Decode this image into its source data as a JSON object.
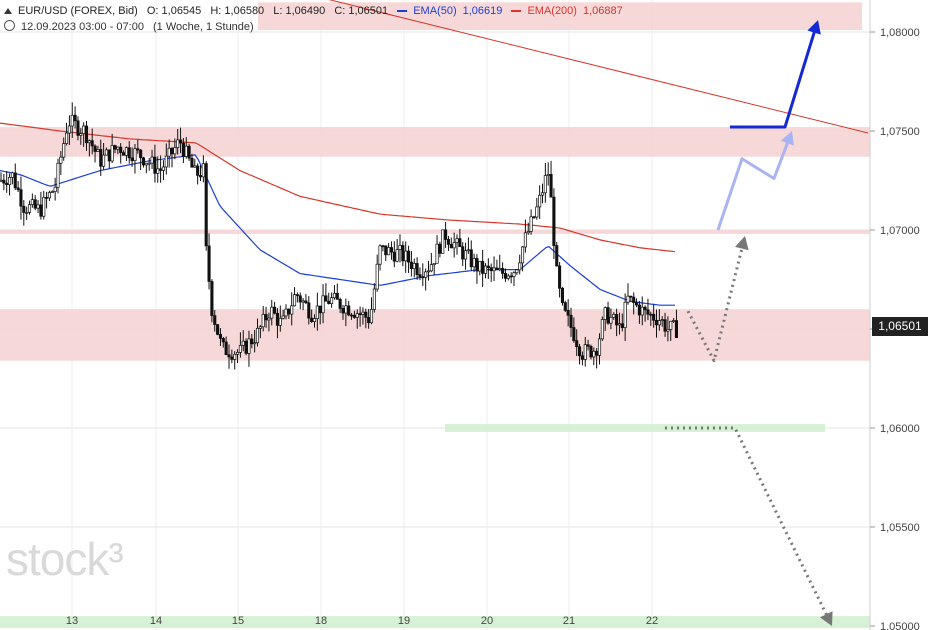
{
  "header": {
    "symbol": "EUR/USD (FOREX, Bid)",
    "open": "O: 1,06545",
    "high": "H: 1,06580",
    "low": "L: 1,06490",
    "close": "C: 1,06501",
    "ema50_label": "EMA(50)",
    "ema50_value": "1,06619",
    "ema200_label": "EMA(200)",
    "ema200_value": "1,06887",
    "range": "12.09.2023 03:00 - 07:00",
    "interval": "(1 Woche, 1 Stunde)"
  },
  "price_tag": "1,06501",
  "watermark": "stock³",
  "colors": {
    "ema50": "#1a3fd6",
    "ema200": "#d8362b",
    "resistance_zone": "#f6d4d4",
    "support_zone": "#d3efd2",
    "scenario_bull_strong": "#1428d6",
    "scenario_bull_light": "#a9b4f0",
    "scenario_bear": "#777777"
  },
  "chart_data": {
    "type": "candlestick",
    "x_tick_labels": [
      "13",
      "14",
      "15",
      "18",
      "19",
      "20",
      "21",
      "22"
    ],
    "y_tick_labels": [
      "1,08000",
      "1,07500",
      "1,07000",
      "1,06500",
      "1,06000",
      "1,05500",
      "1,05000"
    ],
    "ylim": [
      1.0499,
      1.0815
    ],
    "last_price": 1.06501,
    "ema50_last": 1.06619,
    "ema200_last": 1.06887,
    "grid": true,
    "price_key": [
      [
        0,
        1.0725
      ],
      [
        12,
        1.0728
      ],
      [
        24,
        1.0712
      ],
      [
        40,
        1.071
      ],
      [
        55,
        1.0722
      ],
      [
        68,
        1.0755
      ],
      [
        85,
        1.075
      ],
      [
        100,
        1.0735
      ],
      [
        118,
        1.0742
      ],
      [
        140,
        1.0738
      ],
      [
        160,
        1.073
      ],
      [
        180,
        1.0745
      ],
      [
        195,
        1.0728
      ],
      [
        204,
        1.073
      ],
      [
        206,
        1.069
      ],
      [
        212,
        1.066
      ],
      [
        222,
        1.064
      ],
      [
        240,
        1.0638
      ],
      [
        258,
        1.0648
      ],
      [
        270,
        1.066
      ],
      [
        282,
        1.0652
      ],
      [
        296,
        1.0668
      ],
      [
        312,
        1.0658
      ],
      [
        330,
        1.0665
      ],
      [
        352,
        1.066
      ],
      [
        370,
        1.0655
      ],
      [
        380,
        1.069
      ],
      [
        400,
        1.0688
      ],
      [
        420,
        1.068
      ],
      [
        430,
        1.0682
      ],
      [
        445,
        1.0698
      ],
      [
        460,
        1.069
      ],
      [
        480,
        1.068
      ],
      [
        500,
        1.0678
      ],
      [
        515,
        1.068
      ],
      [
        525,
        1.0695
      ],
      [
        538,
        1.0712
      ],
      [
        548,
        1.073
      ],
      [
        552,
        1.071
      ],
      [
        556,
        1.068
      ],
      [
        562,
        1.066
      ],
      [
        572,
        1.065
      ],
      [
        582,
        1.0638
      ],
      [
        596,
        1.064
      ],
      [
        606,
        1.0658
      ],
      [
        620,
        1.065
      ],
      [
        628,
        1.0665
      ],
      [
        645,
        1.0658
      ],
      [
        660,
        1.0655
      ],
      [
        668,
        1.065
      ],
      [
        678,
        1.065
      ]
    ],
    "ema50_key": [
      [
        0,
        1.073
      ],
      [
        20,
        1.0728
      ],
      [
        50,
        1.0722
      ],
      [
        100,
        1.073
      ],
      [
        150,
        1.0735
      ],
      [
        196,
        1.0738
      ],
      [
        220,
        1.0712
      ],
      [
        260,
        1.069
      ],
      [
        300,
        1.0678
      ],
      [
        340,
        1.0675
      ],
      [
        380,
        1.0672
      ],
      [
        430,
        1.0677
      ],
      [
        480,
        1.068
      ],
      [
        520,
        1.068
      ],
      [
        548,
        1.0692
      ],
      [
        570,
        1.0682
      ],
      [
        600,
        1.067
      ],
      [
        630,
        1.0664
      ],
      [
        660,
        1.0662
      ],
      [
        676,
        1.0662
      ]
    ],
    "ema200_key": [
      [
        0,
        1.0754
      ],
      [
        60,
        1.075
      ],
      [
        130,
        1.0746
      ],
      [
        196,
        1.0744
      ],
      [
        240,
        1.073
      ],
      [
        300,
        1.0717
      ],
      [
        380,
        1.0708
      ],
      [
        450,
        1.0705
      ],
      [
        520,
        1.0703
      ],
      [
        560,
        1.0701
      ],
      [
        600,
        1.0695
      ],
      [
        640,
        1.0691
      ],
      [
        676,
        1.0689
      ]
    ],
    "trendline": [
      [
        260,
        1.0825
      ],
      [
        868,
        1.0749
      ]
    ],
    "zones": [
      {
        "kind": "resistance",
        "from": 1.0801,
        "to": 1.0815,
        "x_from": 258,
        "x_to": 862
      },
      {
        "kind": "resistance",
        "from": 1.0737,
        "to": 1.0752,
        "x_from": 0,
        "x_to": 870
      },
      {
        "kind": "resistance",
        "from": 1.0698,
        "to": 1.07,
        "x_from": 0,
        "x_to": 870
      },
      {
        "kind": "resistance",
        "from": 1.0634,
        "to": 1.066,
        "x_from": 0,
        "x_to": 870
      },
      {
        "kind": "support",
        "from": 1.0598,
        "to": 1.0602,
        "x_from": 445,
        "x_to": 825
      },
      {
        "kind": "support",
        "from": 1.0499,
        "to": 1.0505,
        "x_from": 0,
        "x_to": 870
      }
    ],
    "scenarios": [
      {
        "kind": "bull-strong",
        "points": [
          [
            730,
            1.0752
          ],
          [
            785,
            1.0752
          ],
          [
            818,
            1.0806
          ]
        ]
      },
      {
        "kind": "bull-light",
        "points": [
          [
            718,
            1.07
          ],
          [
            742,
            1.0736
          ],
          [
            774,
            1.0726
          ],
          [
            792,
            1.075
          ]
        ]
      },
      {
        "kind": "bear-short",
        "points": [
          [
            688,
            1.0659
          ],
          [
            714,
            1.0634
          ],
          [
            745,
            1.0697
          ]
        ]
      },
      {
        "kind": "bear-long",
        "points": [
          [
            665,
            1.06
          ],
          [
            735,
            1.06
          ],
          [
            832,
            1.05
          ]
        ]
      }
    ]
  }
}
